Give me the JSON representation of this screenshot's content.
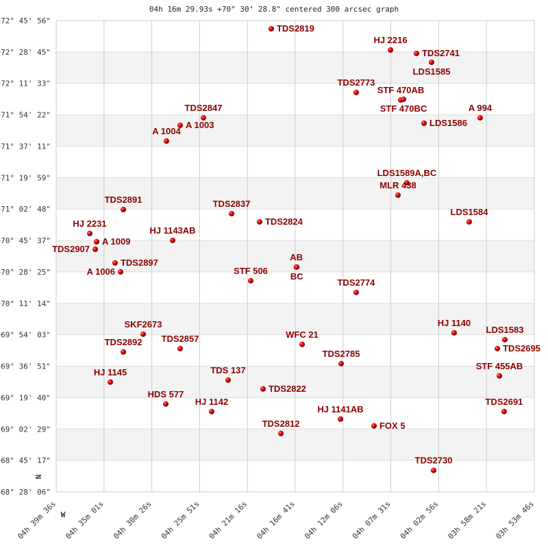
{
  "chart_data": {
    "type": "scatter",
    "title": "04h 16m 29.93s +70° 30’ 28.8\" centered 300 arcsec graph",
    "x_axis": {
      "units": "RA (hours)",
      "range": [
        4.66,
        3.8961
      ],
      "tick_values": [
        4.66,
        4.5836,
        4.5072,
        4.4308,
        4.3544,
        4.2781,
        4.2017,
        4.1253,
        4.0489,
        3.9725,
        3.8961
      ],
      "tick_labels": [
        "04h 39m 36s",
        "04h 35m 01s",
        "04h 30m 26s",
        "04h 25m 51s",
        "04h 21m 16s",
        "04h 16m 41s",
        "04h 12m 06s",
        "04h 07m 31s",
        "04h 02m 56s",
        "03h 58m 21s",
        "03h 53m 46s"
      ]
    },
    "y_axis": {
      "units": "Dec (degrees)",
      "range": [
        68.4683,
        72.7656
      ],
      "tick_labels": [
        "+72° 45' 56\"",
        "+72° 28' 45\"",
        "+72° 11' 33\"",
        "+71° 54' 22\"",
        "+71° 37' 11\"",
        "+71° 19' 59\"",
        "+71° 02' 48\"",
        "+70° 45' 37\"",
        "+70° 28' 25\"",
        "+70° 11' 14\"",
        "+69° 54' 03\"",
        "+69° 36' 51\"",
        "+69° 19' 40\"",
        "+69° 02' 29\"",
        "+68° 45' 17\"",
        "+68° 28' 06\""
      ]
    },
    "compass": {
      "north": "N",
      "west": "W"
    },
    "grid": true,
    "alternating_bands": true,
    "colors": {
      "point": "#e00000",
      "label": "#8b0000",
      "band": "#f3f3f3",
      "grid": "#cccccc"
    },
    "points": [
      {
        "name": "TDS2819",
        "ra": 4.3164,
        "dec": 72.6906
      },
      {
        "name": "HJ 2216",
        "ra": 4.1259,
        "dec": 72.4971
      },
      {
        "name": "TDS2741",
        "ra": 4.0843,
        "dec": 72.4659
      },
      {
        "name": "LDS1585",
        "ra": 4.0603,
        "dec": 72.3847
      },
      {
        "name": "TDS2773",
        "ra": 4.1807,
        "dec": 72.11
      },
      {
        "name": "STF 470AB",
        "ra": 4.1095,
        "dec": 72.0413
      },
      {
        "name": "STF 470BC",
        "ra": 4.1051,
        "dec": 72.0476
      },
      {
        "name": "LDS1586",
        "ra": 4.0723,
        "dec": 71.8291
      },
      {
        "name": "A   994",
        "ra": 3.9826,
        "dec": 71.879
      },
      {
        "name": "TDS2847",
        "ra": 4.4247,
        "dec": 71.879
      },
      {
        "name": "A  1003",
        "ra": 4.4619,
        "dec": 71.8103
      },
      {
        "name": "A  1004",
        "ra": 4.4838,
        "dec": 71.6667
      },
      {
        "name": "LDS1589A,BC",
        "ra": 4.0997,
        "dec": 71.2859
      },
      {
        "name": "MLR 438",
        "ra": 4.1139,
        "dec": 71.1735
      },
      {
        "name": "TDS2891",
        "ra": 4.5527,
        "dec": 71.0424
      },
      {
        "name": "TDS2837",
        "ra": 4.3798,
        "dec": 71.0049
      },
      {
        "name": "TDS2824",
        "ra": 4.335,
        "dec": 70.93
      },
      {
        "name": "LDS1584",
        "ra": 4.0001,
        "dec": 70.93
      },
      {
        "name": "HJ 2231",
        "ra": 4.6064,
        "dec": 70.8238
      },
      {
        "name": "A  1009",
        "ra": 4.5954,
        "dec": 70.7489
      },
      {
        "name": "TDS2907",
        "ra": 4.5976,
        "dec": 70.6802
      },
      {
        "name": "TDS2897",
        "ra": 4.5659,
        "dec": 70.5554
      },
      {
        "name": "A  1006",
        "ra": 4.5571,
        "dec": 70.4742
      },
      {
        "name": "HJ 1143AB",
        "ra": 4.474,
        "dec": 70.7614
      },
      {
        "name": "AB",
        "ra": 4.2762,
        "dec": 70.5179
      },
      {
        "name": "BC",
        "ra": 4.2756,
        "dec": 70.5179
      },
      {
        "name": "STF 506",
        "ra": 4.3492,
        "dec": 70.393
      },
      {
        "name": "TDS2774",
        "ra": 4.1807,
        "dec": 70.2869
      },
      {
        "name": "SKF2673",
        "ra": 4.521,
        "dec": 69.906
      },
      {
        "name": "TDS2892",
        "ra": 4.5527,
        "dec": 69.7437
      },
      {
        "name": "TDS2857",
        "ra": 4.4619,
        "dec": 69.7749
      },
      {
        "name": "WFC  21",
        "ra": 4.2671,
        "dec": 69.8124
      },
      {
        "name": "TDS2785",
        "ra": 4.2047,
        "dec": 69.6376
      },
      {
        "name": "HJ 1140",
        "ra": 4.0242,
        "dec": 69.9185
      },
      {
        "name": "LDS1583",
        "ra": 3.9432,
        "dec": 69.8561
      },
      {
        "name": "TDS2695",
        "ra": 3.9552,
        "dec": 69.7749
      },
      {
        "name": "STF 455AB",
        "ra": 3.9519,
        "dec": 69.5252
      },
      {
        "name": "HJ 1145",
        "ra": 4.5735,
        "dec": 69.469
      },
      {
        "name": "TDS 137",
        "ra": 4.3853,
        "dec": 69.4877
      },
      {
        "name": "TDS2822",
        "ra": 4.3295,
        "dec": 69.4065
      },
      {
        "name": "HDS 577",
        "ra": 4.4849,
        "dec": 69.2692
      },
      {
        "name": "HJ 1142",
        "ra": 4.4116,
        "dec": 69.2005
      },
      {
        "name": "HJ 1141AB",
        "ra": 4.2058,
        "dec": 69.1318
      },
      {
        "name": "FOX   5",
        "ra": 4.1522,
        "dec": 69.0694
      },
      {
        "name": "TDS2691",
        "ra": 3.9443,
        "dec": 69.2005
      },
      {
        "name": "TDS2812",
        "ra": 4.301,
        "dec": 69.0007
      },
      {
        "name": "TDS2730",
        "ra": 4.057,
        "dec": 68.6636
      }
    ]
  }
}
